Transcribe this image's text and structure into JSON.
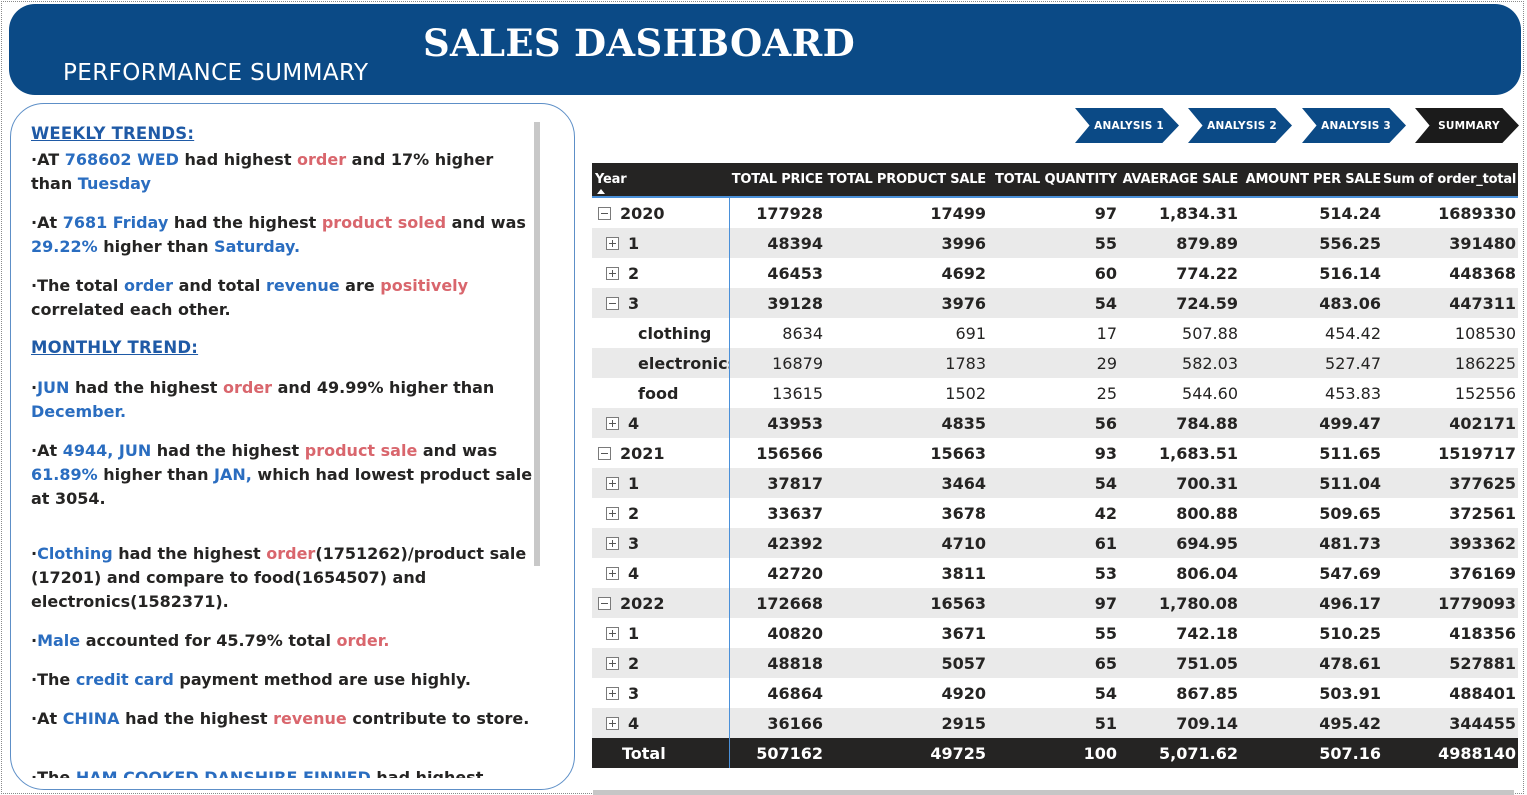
{
  "header": {
    "title": "SALES DASHBOARD",
    "subtitle": "PERFORMANCE SUMMARY"
  },
  "nav": {
    "buttons": [
      {
        "label": "ANALYSIS 1"
      },
      {
        "label": "ANALYSIS 2"
      },
      {
        "label": "ANALYSIS 3"
      },
      {
        "label": "SUMMARY"
      }
    ]
  },
  "summary": {
    "weekly_heading": "WEEKLY TRENDS:",
    "monthly_heading": "MONTHLY TREND:",
    "w1": {
      "t1": "AT ",
      "t2": "768602 WED",
      "t3": " had highest ",
      "t4": "order",
      "t5": "  and 17% higher than ",
      "t6": "Tuesday"
    },
    "w2": {
      "t1": "At ",
      "t2": "7681  Friday",
      "t3": " had the highest ",
      "t4": "product soled",
      "t5": " and was ",
      "t6": "29.22%",
      "t7": " higher than ",
      "t8": "Saturday."
    },
    "w3": {
      "t1": "The total ",
      "t2": "order",
      "t3": " and total ",
      "t4": "revenue",
      "t5": " are ",
      "t6": "positively",
      "t7": " correlated each other."
    },
    "m1": {
      "t1": "JUN",
      "t2": " had the highest ",
      "t3": "order",
      "t4": " and 49.99% higher than ",
      "t5": "December."
    },
    "m2": {
      "t1": "At ",
      "t2": "4944, JUN",
      "t3": " had the highest ",
      "t4": "product sale",
      "t5": " and was ",
      "t6": "61.89%",
      "t7": " higher than ",
      "t8": "JAN,",
      "t9": " which had lowest product sale at 3054."
    },
    "m3": {
      "t1": "Clothing",
      "t2": " had the highest ",
      "t3": "order",
      "t4": "(1751262)/product sale (17201) and  compare to food(1654507) and electronics(1582371)."
    },
    "m4": {
      "t1": "Male",
      "t2": " accounted for 45.79% total ",
      "t3": "order."
    },
    "m5": {
      "t1": "The ",
      "t2": "credit card",
      "t3": " payment method are use highly."
    },
    "m6": {
      "t1": "At ",
      "t2": "CHINA",
      "t3": " had the highest ",
      "t4": "revenue",
      "t5": " contribute to store."
    },
    "m7": {
      "t1": "The ",
      "t2": "HAM COOKED DANSHIRE FINNED",
      "t3": " had highest"
    }
  },
  "table": {
    "headers": [
      "Year",
      "TOTAL PRICE",
      "TOTAL PRODUCT SALE",
      "TOTAL QUANTITY",
      "AVAERAGE SALE",
      "AMOUNT PER SALE",
      "Sum of order_total"
    ],
    "rows": [
      {
        "label": "2020",
        "level": 0,
        "toggle": "minus",
        "values": [
          "177928",
          "17499",
          "97",
          "1,834.31",
          "514.24",
          "1689330"
        ]
      },
      {
        "label": "1",
        "level": 1,
        "toggle": "plus",
        "values": [
          "48394",
          "3996",
          "55",
          "879.89",
          "556.25",
          "391480"
        ]
      },
      {
        "label": "2",
        "level": 1,
        "toggle": "plus",
        "values": [
          "46453",
          "4692",
          "60",
          "774.22",
          "516.14",
          "448368"
        ]
      },
      {
        "label": "3",
        "level": 1,
        "toggle": "minus",
        "values": [
          "39128",
          "3976",
          "54",
          "724.59",
          "483.06",
          "447311"
        ]
      },
      {
        "label": "clothing",
        "level": 2,
        "toggle": "",
        "values": [
          "8634",
          "691",
          "17",
          "507.88",
          "454.42",
          "108530"
        ]
      },
      {
        "label": "electronics",
        "level": 2,
        "toggle": "",
        "values": [
          "16879",
          "1783",
          "29",
          "582.03",
          "527.47",
          "186225"
        ]
      },
      {
        "label": "food",
        "level": 2,
        "toggle": "",
        "values": [
          "13615",
          "1502",
          "25",
          "544.60",
          "453.83",
          "152556"
        ]
      },
      {
        "label": "4",
        "level": 1,
        "toggle": "plus",
        "values": [
          "43953",
          "4835",
          "56",
          "784.88",
          "499.47",
          "402171"
        ]
      },
      {
        "label": "2021",
        "level": 0,
        "toggle": "minus",
        "values": [
          "156566",
          "15663",
          "93",
          "1,683.51",
          "511.65",
          "1519717"
        ]
      },
      {
        "label": "1",
        "level": 1,
        "toggle": "plus",
        "values": [
          "37817",
          "3464",
          "54",
          "700.31",
          "511.04",
          "377625"
        ]
      },
      {
        "label": "2",
        "level": 1,
        "toggle": "plus",
        "values": [
          "33637",
          "3678",
          "42",
          "800.88",
          "509.65",
          "372561"
        ]
      },
      {
        "label": "3",
        "level": 1,
        "toggle": "plus",
        "values": [
          "42392",
          "4710",
          "61",
          "694.95",
          "481.73",
          "393362"
        ]
      },
      {
        "label": "4",
        "level": 1,
        "toggle": "plus",
        "values": [
          "42720",
          "3811",
          "53",
          "806.04",
          "547.69",
          "376169"
        ]
      },
      {
        "label": "2022",
        "level": 0,
        "toggle": "minus",
        "values": [
          "172668",
          "16563",
          "97",
          "1,780.08",
          "496.17",
          "1779093"
        ]
      },
      {
        "label": "1",
        "level": 1,
        "toggle": "plus",
        "values": [
          "40820",
          "3671",
          "55",
          "742.18",
          "510.25",
          "418356"
        ]
      },
      {
        "label": "2",
        "level": 1,
        "toggle": "plus",
        "values": [
          "48818",
          "5057",
          "65",
          "751.05",
          "478.61",
          "527881"
        ]
      },
      {
        "label": "3",
        "level": 1,
        "toggle": "plus",
        "values": [
          "46864",
          "4920",
          "54",
          "867.85",
          "503.91",
          "488401"
        ]
      },
      {
        "label": "4",
        "level": 1,
        "toggle": "plus",
        "values": [
          "36166",
          "2915",
          "51",
          "709.14",
          "495.42",
          "344455"
        ]
      }
    ],
    "total": {
      "label": "Total",
      "values": [
        "507162",
        "49725",
        "100",
        "5,071.62",
        "507.16",
        "4988140"
      ]
    }
  }
}
